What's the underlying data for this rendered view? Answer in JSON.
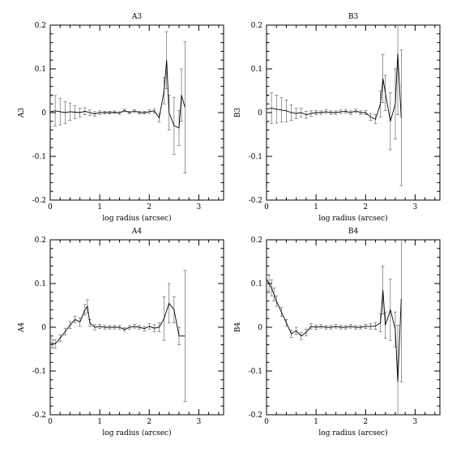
{
  "chart_data": [
    {
      "type": "line",
      "title": "A3",
      "xlabel": "log radius (arcsec)",
      "ylabel": "A3",
      "xlim": [
        0,
        3.5
      ],
      "ylim": [
        -0.2,
        0.2
      ],
      "xticks": [
        "0",
        "1",
        "2",
        "3"
      ],
      "yticks": [
        "0.2",
        "0.1",
        "0",
        "-0.1",
        "-0.2"
      ],
      "grid": false,
      "series": [
        {
          "x": [
            0.0,
            0.1,
            0.2,
            0.3,
            0.4,
            0.5,
            0.6,
            0.7,
            0.8,
            0.9,
            1.0,
            1.1,
            1.2,
            1.3,
            1.4,
            1.5,
            1.6,
            1.7,
            1.8,
            1.9,
            2.0,
            2.1,
            2.2,
            2.3,
            2.35,
            2.4,
            2.5,
            2.6,
            2.65,
            2.72
          ],
          "y": [
            0.002,
            0.004,
            0.002,
            0.0,
            0.002,
            0.001,
            0.0,
            0.003,
            0.0,
            -0.003,
            0.0,
            0.0,
            0.0,
            0.001,
            -0.001,
            0.005,
            0.0,
            0.004,
            0.0,
            0.0,
            0.002,
            0.004,
            -0.012,
            0.05,
            0.12,
            0.0,
            -0.03,
            -0.035,
            0.04,
            0.012
          ],
          "err": [
            0.035,
            0.035,
            0.03,
            0.025,
            0.02,
            0.015,
            0.01,
            0.008,
            0.006,
            0.005,
            0.004,
            0.003,
            0.003,
            0.003,
            0.003,
            0.003,
            0.003,
            0.003,
            0.003,
            0.003,
            0.004,
            0.005,
            0.01,
            0.03,
            0.065,
            0.04,
            0.065,
            0.04,
            0.06,
            0.15
          ]
        }
      ]
    },
    {
      "type": "line",
      "title": "B3",
      "xlabel": "log radius (arcsec)",
      "ylabel": "B3",
      "xlim": [
        0,
        3.5
      ],
      "ylim": [
        -0.2,
        0.2
      ],
      "xticks": [
        "0",
        "1",
        "2",
        "3"
      ],
      "yticks": [
        "0.2",
        "0.1",
        "0",
        "-0.1",
        "-0.2"
      ],
      "grid": false,
      "series": [
        {
          "x": [
            0.0,
            0.1,
            0.2,
            0.3,
            0.4,
            0.5,
            0.6,
            0.7,
            0.8,
            0.9,
            1.0,
            1.1,
            1.2,
            1.3,
            1.4,
            1.5,
            1.6,
            1.7,
            1.8,
            1.9,
            2.0,
            2.1,
            2.2,
            2.3,
            2.35,
            2.4,
            2.5,
            2.6,
            2.65,
            2.72
          ],
          "y": [
            0.008,
            0.01,
            0.008,
            0.006,
            0.004,
            0.0,
            -0.002,
            0.0,
            -0.005,
            -0.002,
            0.0,
            0.0,
            0.002,
            0.0,
            0.0,
            0.002,
            0.003,
            0.0,
            0.004,
            0.0,
            0.0,
            -0.01,
            -0.015,
            0.02,
            0.078,
            0.045,
            -0.02,
            0.02,
            0.135,
            -0.012
          ],
          "err": [
            0.03,
            0.035,
            0.032,
            0.028,
            0.025,
            0.018,
            0.012,
            0.01,
            0.008,
            0.006,
            0.005,
            0.004,
            0.004,
            0.004,
            0.004,
            0.004,
            0.004,
            0.004,
            0.004,
            0.004,
            0.005,
            0.008,
            0.01,
            0.03,
            0.055,
            0.04,
            0.065,
            0.08,
            0.14,
            0.155
          ]
        }
      ]
    },
    {
      "type": "line",
      "title": "A4",
      "xlabel": "log radius (arcsec)",
      "ylabel": "A4",
      "xlim": [
        0,
        3.5
      ],
      "ylim": [
        -0.2,
        0.2
      ],
      "xticks": [
        "0",
        "1",
        "2",
        "3"
      ],
      "yticks": [
        "0.2",
        "0.1",
        "0",
        "-0.1",
        "-0.2"
      ],
      "grid": false,
      "series": [
        {
          "x": [
            0.0,
            0.05,
            0.1,
            0.2,
            0.3,
            0.4,
            0.5,
            0.6,
            0.7,
            0.75,
            0.8,
            0.9,
            1.0,
            1.1,
            1.2,
            1.3,
            1.4,
            1.5,
            1.6,
            1.7,
            1.8,
            1.9,
            2.0,
            2.1,
            2.2,
            2.3,
            2.4,
            2.5,
            2.6,
            2.72
          ],
          "y": [
            -0.035,
            -0.038,
            -0.038,
            -0.025,
            -0.01,
            0.005,
            0.018,
            0.012,
            0.04,
            0.048,
            0.01,
            0.0,
            0.002,
            0.0,
            0.0,
            0.0,
            0.0,
            -0.005,
            0.0,
            0.002,
            0.0,
            -0.003,
            0.002,
            -0.002,
            0.0,
            0.02,
            0.055,
            0.04,
            -0.02,
            -0.02
          ],
          "err": [
            0.01,
            0.01,
            0.01,
            0.008,
            0.008,
            0.008,
            0.007,
            0.01,
            0.012,
            0.015,
            0.008,
            0.006,
            0.005,
            0.004,
            0.004,
            0.004,
            0.004,
            0.004,
            0.004,
            0.004,
            0.004,
            0.005,
            0.006,
            0.008,
            0.01,
            0.05,
            0.045,
            0.03,
            0.02,
            0.15
          ]
        }
      ]
    },
    {
      "type": "line",
      "title": "B4",
      "xlabel": "log radius (arcsec)",
      "ylabel": "B4",
      "xlim": [
        0,
        3.5
      ],
      "ylim": [
        -0.2,
        0.2
      ],
      "xticks": [
        "0",
        "1",
        "2",
        "3"
      ],
      "yticks": [
        "0.2",
        "0.1",
        "0",
        "-0.1",
        "-0.2"
      ],
      "grid": false,
      "series": [
        {
          "x": [
            0.0,
            0.05,
            0.1,
            0.15,
            0.2,
            0.3,
            0.4,
            0.5,
            0.6,
            0.7,
            0.8,
            0.9,
            1.0,
            1.1,
            1.2,
            1.3,
            1.4,
            1.5,
            1.6,
            1.7,
            1.8,
            1.9,
            2.0,
            2.1,
            2.2,
            2.3,
            2.35,
            2.4,
            2.5,
            2.6,
            2.65,
            2.72
          ],
          "y": [
            0.11,
            0.1,
            0.09,
            0.075,
            0.06,
            0.035,
            0.01,
            -0.015,
            -0.008,
            -0.02,
            -0.012,
            0.002,
            0.0,
            0.002,
            0.0,
            0.0,
            0.002,
            0.0,
            0.0,
            0.002,
            0.0,
            0.0,
            0.002,
            0.002,
            0.003,
            0.01,
            0.085,
            0.005,
            0.04,
            -0.005,
            -0.125,
            0.065
          ],
          "err": [
            0.025,
            0.02,
            0.018,
            0.015,
            0.012,
            0.01,
            0.008,
            0.008,
            0.008,
            0.008,
            0.008,
            0.006,
            0.005,
            0.004,
            0.004,
            0.004,
            0.004,
            0.004,
            0.004,
            0.004,
            0.004,
            0.004,
            0.005,
            0.006,
            0.008,
            0.02,
            0.055,
            0.03,
            0.07,
            0.04,
            0.13,
            0.19
          ]
        }
      ]
    }
  ]
}
